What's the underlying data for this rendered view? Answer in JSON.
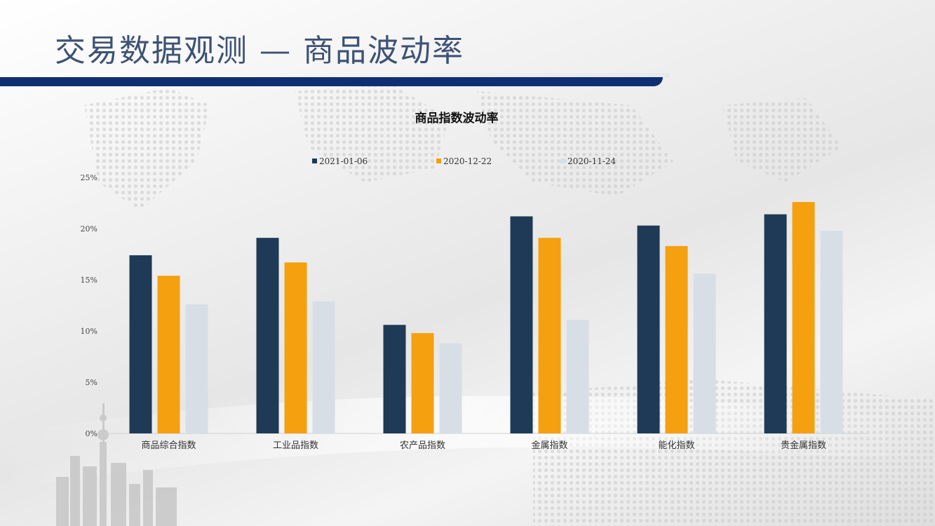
{
  "page": {
    "title": "交易数据观测 — 商品波动率"
  },
  "chart_data": {
    "type": "bar",
    "title": "商品指数波动率",
    "categories": [
      "商品综合指数",
      "工业品指数",
      "农产品指数",
      "金属指数",
      "能化指数",
      "贵金属指数"
    ],
    "series": [
      {
        "name": "2021-01-06",
        "color": "#1f3a56",
        "values": [
          17.4,
          19.1,
          10.6,
          21.2,
          20.3,
          21.4
        ]
      },
      {
        "name": "2020-12-22",
        "color": "#f5a00f",
        "values": [
          15.4,
          16.7,
          9.8,
          19.1,
          18.3,
          22.6
        ]
      },
      {
        "name": "2020-11-24",
        "color": "#d8dee6",
        "values": [
          12.6,
          12.9,
          8.8,
          11.1,
          15.6,
          19.8
        ]
      }
    ],
    "yticks": [
      "0%",
      "5%",
      "10%",
      "15%",
      "20%",
      "25%"
    ],
    "ylim": [
      0,
      25
    ],
    "legend": "top-center",
    "grid": false
  }
}
